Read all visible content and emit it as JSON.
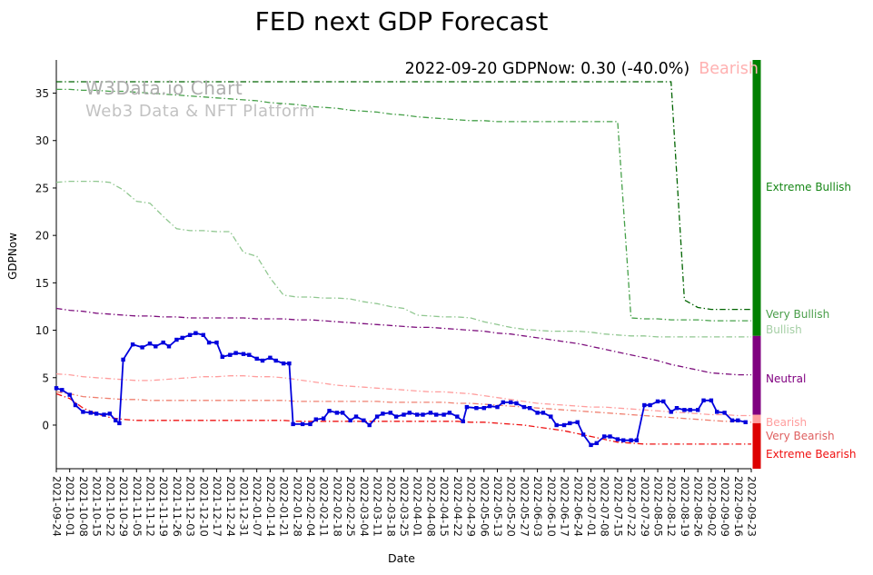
{
  "title": "FED next GDP Forecast",
  "watermark": {
    "line1": "W3Data.io Chart",
    "line2": "Web3 Data & NFT Platform"
  },
  "annotation": {
    "text": "2022-09-20 GDPNow: 0.30 (-40.0%)",
    "status": "Bearish",
    "status_color": "#ffb1b1"
  },
  "axes": {
    "x_title": "Date",
    "y_title": "GDPNow"
  },
  "chart_data": {
    "type": "line",
    "title": "FED next GDP Forecast",
    "xlabel": "Date",
    "ylabel": "GDPNow",
    "ylim": [
      -4.6,
      38.5
    ],
    "y_ticks": [
      0,
      5,
      10,
      15,
      20,
      25,
      30,
      35
    ],
    "grid": false,
    "legend_position": "none",
    "x_unit": "days since 2021-09-24 (x_labels are weekly ticks, 7 days apart)",
    "x_labels": [
      "2021-09-24",
      "2021-10-01",
      "2021-10-08",
      "2021-10-15",
      "2021-10-22",
      "2021-10-29",
      "2021-11-05",
      "2021-11-12",
      "2021-11-19",
      "2021-11-26",
      "2021-12-03",
      "2021-12-10",
      "2021-12-17",
      "2021-12-24",
      "2021-12-31",
      "2022-01-07",
      "2022-01-14",
      "2022-01-21",
      "2022-01-28",
      "2022-02-04",
      "2022-02-11",
      "2022-02-18",
      "2022-02-25",
      "2022-03-04",
      "2022-03-11",
      "2022-03-18",
      "2022-03-25",
      "2022-04-01",
      "2022-04-08",
      "2022-04-15",
      "2022-04-22",
      "2022-04-29",
      "2022-05-06",
      "2022-05-13",
      "2022-05-20",
      "2022-05-27",
      "2022-06-03",
      "2022-06-10",
      "2022-06-17",
      "2022-06-24",
      "2022-07-01",
      "2022-07-08",
      "2022-07-15",
      "2022-07-22",
      "2022-07-29",
      "2022-08-05",
      "2022-08-12",
      "2022-08-19",
      "2022-08-26",
      "2022-09-02",
      "2022-09-09",
      "2022-09-16",
      "2022-09-23"
    ],
    "main_series": {
      "name": "GDPNow",
      "color": "#0000dd",
      "marker": "square",
      "points": [
        [
          0,
          3.9
        ],
        [
          3,
          3.7
        ],
        [
          7,
          3.2
        ],
        [
          10,
          2.1
        ],
        [
          14,
          1.4
        ],
        [
          18,
          1.3
        ],
        [
          21,
          1.2
        ],
        [
          25,
          1.1
        ],
        [
          28,
          1.2
        ],
        [
          31,
          0.5
        ],
        [
          33,
          0.2
        ],
        [
          35,
          6.9
        ],
        [
          40,
          8.5
        ],
        [
          45,
          8.2
        ],
        [
          49,
          8.6
        ],
        [
          52,
          8.3
        ],
        [
          56,
          8.7
        ],
        [
          59,
          8.3
        ],
        [
          63,
          9.0
        ],
        [
          66,
          9.2
        ],
        [
          70,
          9.5
        ],
        [
          73,
          9.7
        ],
        [
          77,
          9.5
        ],
        [
          80,
          8.7
        ],
        [
          84,
          8.7
        ],
        [
          87,
          7.2
        ],
        [
          91,
          7.4
        ],
        [
          94,
          7.6
        ],
        [
          98,
          7.5
        ],
        [
          101,
          7.4
        ],
        [
          105,
          7.0
        ],
        [
          108,
          6.8
        ],
        [
          112,
          7.1
        ],
        [
          115,
          6.8
        ],
        [
          119,
          6.5
        ],
        [
          122,
          6.5
        ],
        [
          124,
          0.1
        ],
        [
          129,
          0.1
        ],
        [
          133,
          0.1
        ],
        [
          136,
          0.6
        ],
        [
          140,
          0.7
        ],
        [
          143,
          1.5
        ],
        [
          147,
          1.3
        ],
        [
          150,
          1.3
        ],
        [
          154,
          0.5
        ],
        [
          157,
          0.9
        ],
        [
          161,
          0.5
        ],
        [
          164,
          0.0
        ],
        [
          168,
          0.9
        ],
        [
          171,
          1.2
        ],
        [
          175,
          1.3
        ],
        [
          178,
          0.9
        ],
        [
          182,
          1.1
        ],
        [
          185,
          1.3
        ],
        [
          189,
          1.1
        ],
        [
          192,
          1.1
        ],
        [
          196,
          1.3
        ],
        [
          199,
          1.1
        ],
        [
          203,
          1.1
        ],
        [
          206,
          1.3
        ],
        [
          210,
          0.9
        ],
        [
          213,
          0.4
        ],
        [
          215,
          1.9
        ],
        [
          220,
          1.8
        ],
        [
          224,
          1.8
        ],
        [
          227,
          2.0
        ],
        [
          231,
          1.9
        ],
        [
          234,
          2.4
        ],
        [
          238,
          2.4
        ],
        [
          241,
          2.3
        ],
        [
          245,
          1.9
        ],
        [
          248,
          1.8
        ],
        [
          252,
          1.3
        ],
        [
          255,
          1.3
        ],
        [
          259,
          0.9
        ],
        [
          262,
          0.0
        ],
        [
          266,
          0.0
        ],
        [
          269,
          0.2
        ],
        [
          273,
          0.3
        ],
        [
          276,
          -1.0
        ],
        [
          280,
          -2.1
        ],
        [
          283,
          -1.9
        ],
        [
          287,
          -1.2
        ],
        [
          290,
          -1.2
        ],
        [
          294,
          -1.5
        ],
        [
          297,
          -1.6
        ],
        [
          301,
          -1.6
        ],
        [
          304,
          -1.6
        ],
        [
          308,
          2.1
        ],
        [
          311,
          2.1
        ],
        [
          315,
          2.5
        ],
        [
          318,
          2.5
        ],
        [
          322,
          1.4
        ],
        [
          325,
          1.8
        ],
        [
          329,
          1.6
        ],
        [
          332,
          1.6
        ],
        [
          336,
          1.6
        ],
        [
          339,
          2.6
        ],
        [
          343,
          2.6
        ],
        [
          346,
          1.4
        ],
        [
          350,
          1.3
        ],
        [
          354,
          0.5
        ],
        [
          357,
          0.5
        ],
        [
          361,
          0.3
        ]
      ]
    },
    "threshold_lines": [
      {
        "id": "extreme-bullish",
        "name": "Extreme Bullish threshold",
        "color": "#006400",
        "style": "dashdot",
        "values": [
          36.2,
          36.2,
          36.2,
          36.2,
          36.2,
          36.2,
          36.2,
          36.2,
          36.2,
          36.2,
          36.2,
          36.2,
          36.2,
          36.2,
          36.2,
          36.2,
          36.2,
          36.2,
          36.2,
          36.2,
          36.2,
          36.2,
          36.2,
          36.2,
          36.2,
          36.2,
          36.2,
          36.2,
          36.2,
          36.2,
          36.2,
          36.2,
          36.2,
          36.2,
          36.2,
          36.2,
          36.2,
          36.2,
          36.2,
          36.2,
          36.2,
          36.2,
          36.2,
          36.2,
          36.2,
          36.2,
          36.2,
          13.2,
          12.4,
          12.2,
          12.2,
          12.2,
          12.2
        ]
      },
      {
        "id": "very-bullish",
        "name": "Very Bullish threshold",
        "color": "#46a049",
        "style": "dashdot",
        "values": [
          35.4,
          35.4,
          35.3,
          35.3,
          35.2,
          35.2,
          35.1,
          35.0,
          34.9,
          34.8,
          34.7,
          34.6,
          34.5,
          34.4,
          34.3,
          34.2,
          34.0,
          33.9,
          33.8,
          33.6,
          33.5,
          33.4,
          33.2,
          33.1,
          33.0,
          32.8,
          32.7,
          32.5,
          32.4,
          32.3,
          32.2,
          32.1,
          32.1,
          32.0,
          32.0,
          32.0,
          32.0,
          32.0,
          32.0,
          32.0,
          32.0,
          32.0,
          32.0,
          11.3,
          11.2,
          11.2,
          11.1,
          11.1,
          11.1,
          11.0,
          11.0,
          11.0,
          11.0
        ]
      },
      {
        "id": "bullish",
        "name": "Bullish threshold",
        "color": "#90c790",
        "style": "dashdot",
        "values": [
          25.6,
          25.7,
          25.7,
          25.7,
          25.6,
          24.8,
          23.6,
          23.4,
          22.0,
          20.7,
          20.5,
          20.5,
          20.4,
          20.4,
          18.2,
          17.8,
          15.5,
          13.7,
          13.5,
          13.5,
          13.4,
          13.4,
          13.3,
          13.0,
          12.8,
          12.5,
          12.3,
          11.6,
          11.5,
          11.4,
          11.4,
          11.3,
          10.9,
          10.6,
          10.3,
          10.1,
          10.0,
          9.9,
          9.9,
          9.9,
          9.8,
          9.6,
          9.5,
          9.4,
          9.4,
          9.3,
          9.3,
          9.3,
          9.3,
          9.3,
          9.3,
          9.3,
          9.3
        ]
      },
      {
        "id": "neutral",
        "name": "Neutral threshold",
        "color": "#7d0f7d",
        "style": "dashdot",
        "values": [
          12.3,
          12.1,
          12.0,
          11.8,
          11.7,
          11.6,
          11.5,
          11.5,
          11.4,
          11.4,
          11.3,
          11.3,
          11.3,
          11.3,
          11.3,
          11.2,
          11.2,
          11.2,
          11.1,
          11.1,
          11.0,
          10.9,
          10.8,
          10.7,
          10.6,
          10.5,
          10.4,
          10.3,
          10.3,
          10.2,
          10.1,
          10.0,
          9.9,
          9.7,
          9.6,
          9.4,
          9.2,
          9.0,
          8.8,
          8.6,
          8.3,
          8.0,
          7.7,
          7.4,
          7.1,
          6.8,
          6.4,
          6.1,
          5.8,
          5.5,
          5.4,
          5.3,
          5.3
        ]
      },
      {
        "id": "bearish",
        "name": "Bearish threshold",
        "color": "#ff9e9e",
        "style": "dashdot",
        "values": [
          5.4,
          5.3,
          5.1,
          5.0,
          4.9,
          4.8,
          4.7,
          4.7,
          4.8,
          4.9,
          5.0,
          5.1,
          5.1,
          5.2,
          5.2,
          5.1,
          5.1,
          5.0,
          4.8,
          4.6,
          4.4,
          4.2,
          4.1,
          4.0,
          3.9,
          3.8,
          3.7,
          3.6,
          3.5,
          3.5,
          3.4,
          3.3,
          3.1,
          2.9,
          2.7,
          2.5,
          2.3,
          2.2,
          2.1,
          2.0,
          1.9,
          1.9,
          1.8,
          1.7,
          1.6,
          1.5,
          1.4,
          1.3,
          1.2,
          1.1,
          1.1,
          1.0,
          1.0
        ]
      },
      {
        "id": "very-bearish",
        "name": "Very Bearish threshold",
        "color": "#ef8070",
        "style": "dashdot",
        "values": [
          3.5,
          3.3,
          3.0,
          2.9,
          2.8,
          2.7,
          2.7,
          2.6,
          2.6,
          2.6,
          2.6,
          2.6,
          2.6,
          2.6,
          2.6,
          2.6,
          2.6,
          2.6,
          2.5,
          2.5,
          2.5,
          2.5,
          2.5,
          2.5,
          2.5,
          2.4,
          2.4,
          2.4,
          2.4,
          2.4,
          2.3,
          2.3,
          2.2,
          2.1,
          2.0,
          1.9,
          1.8,
          1.7,
          1.6,
          1.5,
          1.4,
          1.3,
          1.2,
          1.1,
          1.0,
          0.9,
          0.8,
          0.7,
          0.6,
          0.5,
          0.4,
          0.4,
          0.3
        ]
      },
      {
        "id": "extreme-bearish",
        "name": "Extreme Bearish threshold",
        "color": "#ee1111",
        "style": "dashdot",
        "values": [
          3.3,
          2.8,
          1.8,
          1.2,
          0.8,
          0.6,
          0.5,
          0.5,
          0.5,
          0.5,
          0.5,
          0.5,
          0.5,
          0.5,
          0.5,
          0.5,
          0.5,
          0.5,
          0.4,
          0.4,
          0.4,
          0.4,
          0.4,
          0.4,
          0.4,
          0.4,
          0.4,
          0.4,
          0.4,
          0.4,
          0.4,
          0.3,
          0.3,
          0.2,
          0.1,
          0.0,
          -0.2,
          -0.4,
          -0.6,
          -0.9,
          -1.2,
          -1.5,
          -1.8,
          -1.9,
          -2.0,
          -2.0,
          -2.0,
          -2.0,
          -2.0,
          -2.0,
          -2.0,
          -2.0,
          -2.0
        ]
      }
    ],
    "zones": [
      {
        "label": "Extreme Bullish",
        "color": "#178717",
        "label_value": 25.0
      },
      {
        "label": "Very Bullish",
        "color": "#4a9e4a",
        "label_value": 11.6
      },
      {
        "label": "Bullish",
        "color": "#a5cfa5",
        "label_value": 10.0
      },
      {
        "label": "Neutral",
        "color": "#800080",
        "label_value": 4.8
      },
      {
        "label": "Bearish",
        "color": "#ff9e9e",
        "label_value": 0.2
      },
      {
        "label": "Very Bearish",
        "color": "#df5f5f",
        "label_value": -1.2
      },
      {
        "label": "Extreme Bearish",
        "color": "#f01010",
        "label_value": -3.2
      }
    ],
    "right_bar_segments": [
      {
        "color": "#008000",
        "from": 38.5,
        "to": 9.4
      },
      {
        "color": "#800080",
        "from": 9.4,
        "to": 1.1
      },
      {
        "color": "#ff9e9e",
        "from": 1.1,
        "to": 0.2
      },
      {
        "color": "#dd0000",
        "from": 0.2,
        "to": -4.6
      }
    ]
  }
}
